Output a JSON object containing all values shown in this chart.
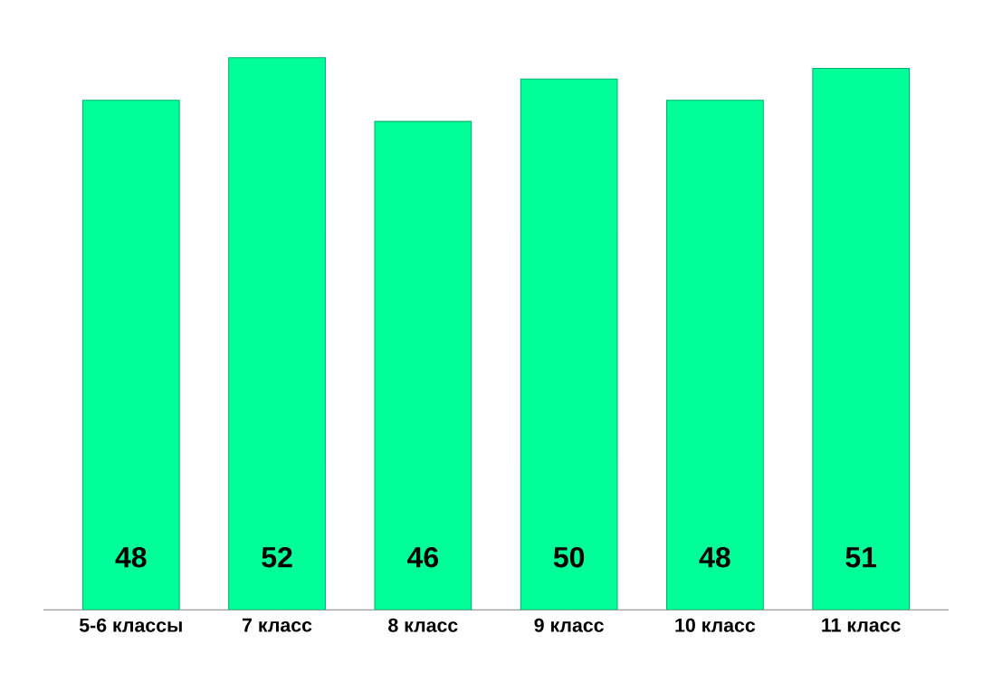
{
  "chart_data": {
    "type": "bar",
    "categories": [
      "5-6 классы",
      "7 класс",
      "8 класс",
      "9 класс",
      "10 класс",
      "11 класс"
    ],
    "values": [
      48,
      52,
      46,
      50,
      48,
      51
    ],
    "color": "#00ff99",
    "data_labels": true
  }
}
